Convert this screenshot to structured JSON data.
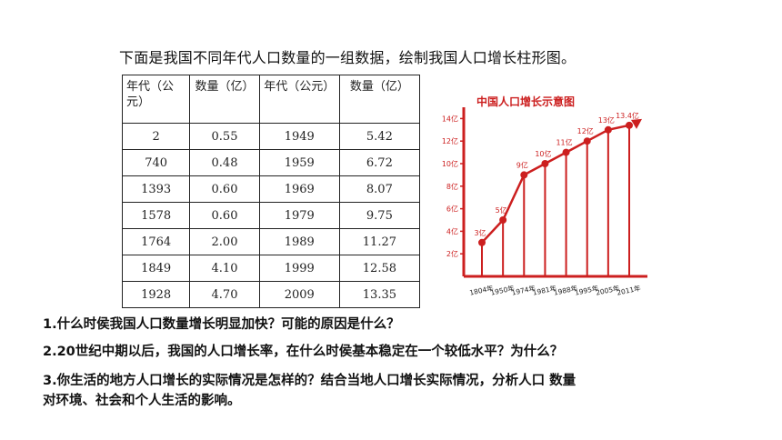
{
  "intro": "下面是我国不同年代人口数量的一组数据，绘制我国人口增长柱形图。",
  "table": {
    "headers": [
      "年代（公元）",
      "数量（亿）",
      "年代（公元）",
      "数量（亿）"
    ],
    "rows": [
      [
        "2",
        "0.55",
        "1949",
        "5.42"
      ],
      [
        "740",
        "0.48",
        "1959",
        "6.72"
      ],
      [
        "1393",
        "0.60",
        "1969",
        "8.07"
      ],
      [
        "1578",
        "0.60",
        "1979",
        "9.75"
      ],
      [
        "1764",
        "2.00",
        "1989",
        "11.27"
      ],
      [
        "1849",
        "4.10",
        "1999",
        "12.58"
      ],
      [
        "1928",
        "4.70",
        "2009",
        "13.35"
      ]
    ]
  },
  "questions": {
    "q1": "1.什么时侯我国人口数量增长明显加快？可能的原因是什么？",
    "q2": "2.20世纪中期以后，我国的人口增长率，在什么时侯基本稳定在一个较低水平？为什么？",
    "q3a": "3.你生活的地方人口增长的实际情况是怎样的？结合当地人口增长实际情况，分析人口 数量",
    "q3b": "对环境、社会和个人生活的影响。"
  },
  "chart_data": {
    "type": "line",
    "title": "中国人口增长示意图",
    "categories": [
      "1804年",
      "1950年",
      "1974年",
      "1981年",
      "1988年",
      "1995年",
      "2005年",
      "2011年"
    ],
    "values": [
      3,
      5,
      9,
      10,
      11,
      12,
      13,
      13.4
    ],
    "point_labels": [
      "3亿",
      "5亿",
      "9亿",
      "10亿",
      "11亿",
      "12亿",
      "13亿",
      "13.4亿"
    ],
    "y_ticks": [
      "14亿",
      "12亿",
      "10亿",
      "8亿",
      "6亿",
      "4亿",
      "2亿"
    ],
    "y_tick_values": [
      14,
      12,
      10,
      8,
      6,
      4,
      2
    ],
    "ylim": [
      0,
      15
    ],
    "colors": {
      "line": "#cc1f1f",
      "marker": "#cc1f1f",
      "text": "#cc1f1f",
      "stem": "#cc1f1f"
    }
  }
}
